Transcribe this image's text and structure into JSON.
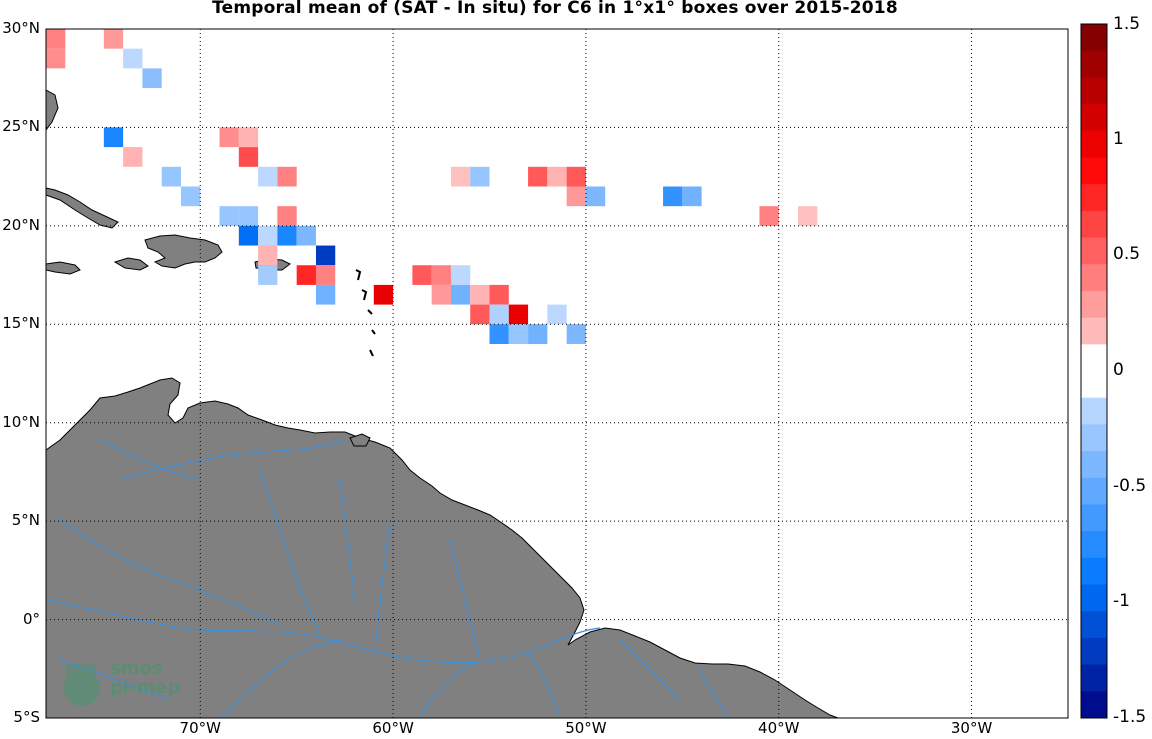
{
  "title": "Temporal mean of (SAT - In situ) for C6 in 1°x1° boxes over 2015-2018",
  "lat_labels": [
    "30°N",
    "25°N",
    "20°N",
    "15°N",
    "10°N",
    "5°N",
    "0°",
    "5°S"
  ],
  "lon_labels": [
    "70°W",
    "60°W",
    "50°W",
    "40°W",
    "30°W"
  ],
  "colorbar": {
    "labels": [
      "1.5",
      "1",
      "0.5",
      "0",
      "-0.5",
      "-1",
      "-1.5"
    ],
    "range": [
      -1.5,
      1.5
    ]
  },
  "logo": {
    "line1": "smos",
    "line2": "pi-mep"
  },
  "colors": {
    "land": "#808080",
    "rivers": "#3d8fd6",
    "grid": "#000000"
  },
  "map_extent": {
    "lon": [
      -78,
      -25
    ],
    "lat": [
      -5,
      30
    ]
  },
  "chart_data": {
    "type": "heatmap",
    "title": "Temporal mean of (SAT - In situ) for C6 in 1°x1° boxes over 2015-2018",
    "cells": [
      {
        "lon": -78,
        "lat": 29,
        "v": 0.4
      },
      {
        "lon": -78,
        "lat": 28,
        "v": 0.35
      },
      {
        "lon": -75,
        "lat": 29,
        "v": 0.3
      },
      {
        "lon": -74,
        "lat": 28,
        "v": -0.15
      },
      {
        "lon": -73,
        "lat": 27,
        "v": -0.35
      },
      {
        "lon": -75,
        "lat": 24,
        "v": -0.8
      },
      {
        "lon": -74,
        "lat": 23,
        "v": 0.2
      },
      {
        "lon": -69,
        "lat": 24,
        "v": 0.35
      },
      {
        "lon": -68,
        "lat": 24,
        "v": 0.2
      },
      {
        "lon": -68,
        "lat": 23,
        "v": 0.6
      },
      {
        "lon": -72,
        "lat": 22,
        "v": -0.3
      },
      {
        "lon": -67,
        "lat": 22,
        "v": -0.15
      },
      {
        "lon": -66,
        "lat": 22,
        "v": 0.4
      },
      {
        "lon": -71,
        "lat": 21,
        "v": -0.3
      },
      {
        "lon": -69,
        "lat": 20,
        "v": -0.3
      },
      {
        "lon": -68,
        "lat": 20,
        "v": -0.3
      },
      {
        "lon": -66,
        "lat": 20,
        "v": 0.4
      },
      {
        "lon": -68,
        "lat": 19,
        "v": -0.95
      },
      {
        "lon": -67,
        "lat": 19,
        "v": -0.15
      },
      {
        "lon": -66,
        "lat": 19,
        "v": -0.8
      },
      {
        "lon": -65,
        "lat": 19,
        "v": -0.4
      },
      {
        "lon": -67,
        "lat": 18,
        "v": 0.2
      },
      {
        "lon": -64,
        "lat": 18,
        "v": -1.2
      },
      {
        "lon": -67,
        "lat": 17,
        "v": -0.25
      },
      {
        "lon": -65,
        "lat": 17,
        "v": 0.75
      },
      {
        "lon": -64,
        "lat": 17,
        "v": 0.4
      },
      {
        "lon": -64,
        "lat": 16,
        "v": -0.45
      },
      {
        "lon": -61,
        "lat": 16,
        "v": 1.0
      },
      {
        "lon": -59,
        "lat": 17,
        "v": 0.55
      },
      {
        "lon": -58,
        "lat": 17,
        "v": 0.4
      },
      {
        "lon": -57,
        "lat": 17,
        "v": -0.15
      },
      {
        "lon": -58,
        "lat": 16,
        "v": 0.3
      },
      {
        "lon": -57,
        "lat": 16,
        "v": -0.45
      },
      {
        "lon": -56,
        "lat": 16,
        "v": 0.2
      },
      {
        "lon": -55,
        "lat": 16,
        "v": 0.55
      },
      {
        "lon": -56,
        "lat": 15,
        "v": 0.55
      },
      {
        "lon": -55,
        "lat": 15,
        "v": -0.2
      },
      {
        "lon": -54,
        "lat": 15,
        "v": 1.0
      },
      {
        "lon": -55,
        "lat": 14,
        "v": -0.7
      },
      {
        "lon": -54,
        "lat": 14,
        "v": -0.3
      },
      {
        "lon": -53,
        "lat": 14,
        "v": -0.45
      },
      {
        "lon": -52,
        "lat": 15,
        "v": -0.15
      },
      {
        "lon": -51,
        "lat": 14,
        "v": -0.4
      },
      {
        "lon": -57,
        "lat": 22,
        "v": 0.15
      },
      {
        "lon": -56,
        "lat": 22,
        "v": -0.3
      },
      {
        "lon": -53,
        "lat": 22,
        "v": 0.55
      },
      {
        "lon": -52,
        "lat": 22,
        "v": 0.2
      },
      {
        "lon": -51,
        "lat": 22,
        "v": 0.55
      },
      {
        "lon": -51,
        "lat": 21,
        "v": 0.3
      },
      {
        "lon": -50,
        "lat": 21,
        "v": -0.4
      },
      {
        "lon": -46,
        "lat": 21,
        "v": -0.7
      },
      {
        "lon": -45,
        "lat": 21,
        "v": -0.45
      },
      {
        "lon": -41,
        "lat": 20,
        "v": 0.4
      },
      {
        "lon": -39,
        "lat": 20,
        "v": 0.15
      }
    ]
  }
}
